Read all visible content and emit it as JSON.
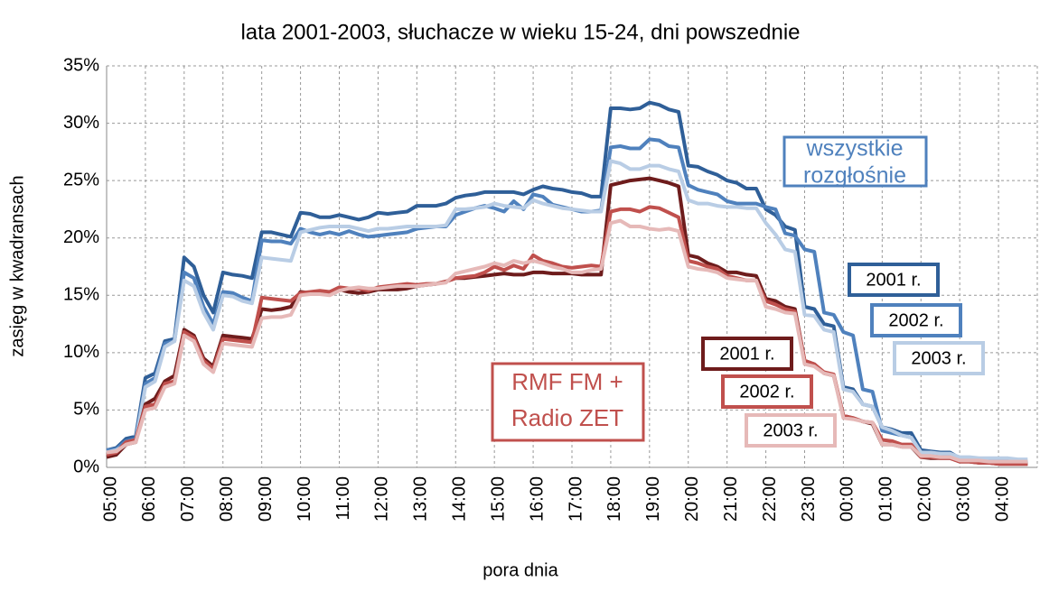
{
  "chart_data": {
    "type": "line",
    "title": "lata 2001-2003, słuchacze w wieku 15-24, dni powszednie",
    "x_label": "pora dnia",
    "y_label": "zasięg w kwadransach",
    "categories": [
      "05:00",
      null,
      null,
      null,
      "06:00",
      null,
      null,
      null,
      "07:00",
      null,
      null,
      null,
      "08:00",
      null,
      null,
      null,
      "09:00",
      null,
      null,
      null,
      "10:00",
      null,
      null,
      null,
      "11:00",
      null,
      null,
      null,
      "12:00",
      null,
      null,
      null,
      "13:00",
      null,
      null,
      null,
      "14:00",
      null,
      null,
      null,
      "15:00",
      null,
      null,
      null,
      "16:00",
      null,
      null,
      null,
      "17:00",
      null,
      null,
      null,
      "18:00",
      null,
      null,
      null,
      "19:00",
      null,
      null,
      null,
      "20:00",
      null,
      null,
      null,
      "21:00",
      null,
      null,
      null,
      "22:00",
      null,
      null,
      null,
      "23:00",
      null,
      null,
      null,
      "00:00",
      null,
      null,
      null,
      "01:00",
      null,
      null,
      null,
      "02:00",
      null,
      null,
      null,
      "03:00",
      null,
      null,
      null,
      "04:00",
      null,
      null,
      null
    ],
    "ylim": [
      0,
      35
    ],
    "yticks": [
      {
        "value": 0,
        "label": "0%"
      },
      {
        "value": 5,
        "label": "5%"
      },
      {
        "value": 10,
        "label": "10%"
      },
      {
        "value": 15,
        "label": "15%"
      },
      {
        "value": 20,
        "label": "20%"
      },
      {
        "value": 25,
        "label": "25%"
      },
      {
        "value": 30,
        "label": "30%"
      },
      {
        "value": 35,
        "label": "35%"
      }
    ],
    "grid": true,
    "annotations": [
      {
        "lines": [
          "wszystkie",
          "rozgłośnie"
        ],
        "color": "#4f81bd"
      },
      {
        "lines": [
          "RMF FM +",
          "Radio ZET"
        ],
        "color": "#c0504d"
      }
    ],
    "series": [
      {
        "name": "2001 r.",
        "group": 0,
        "color": "#2f5f98",
        "values": [
          1.5,
          1.7,
          2.5,
          2.7,
          7.8,
          8.2,
          11,
          11.2,
          18.3,
          17.5,
          15,
          13.5,
          17,
          16.8,
          16.7,
          16.5,
          20.5,
          20.5,
          20.3,
          20.1,
          22.2,
          22.1,
          21.8,
          21.8,
          22,
          21.8,
          21.6,
          21.8,
          22.2,
          22.1,
          22.2,
          22.3,
          22.8,
          22.8,
          22.8,
          23,
          23.5,
          23.7,
          23.8,
          24,
          24,
          24,
          24,
          23.8,
          24.2,
          24.5,
          24.3,
          24.2,
          24,
          23.9,
          23.6,
          23.6,
          31.3,
          31.3,
          31.2,
          31.3,
          31.8,
          31.6,
          31.2,
          31,
          26.3,
          26.2,
          25.8,
          25.5,
          25,
          24.8,
          24.3,
          24.3,
          22.5,
          22,
          21,
          20.7,
          14,
          13.8,
          12.5,
          12.3,
          7,
          6.8,
          5.5,
          5.3,
          3.5,
          3.3,
          3,
          3,
          1.5,
          1.4,
          1.3,
          1.3,
          0.8,
          0.8,
          0.7,
          0.7,
          0.6,
          0.6,
          0.5,
          0.5
        ]
      },
      {
        "name": "2002 r.",
        "group": 0,
        "color": "#4f81bd",
        "values": [
          1.5,
          1.6,
          2.3,
          2.5,
          7.3,
          7.8,
          10.8,
          11,
          17,
          16.5,
          14,
          12.5,
          15.3,
          15.2,
          14.8,
          14.5,
          19.8,
          19.7,
          19.7,
          19.5,
          20.8,
          20.5,
          20.3,
          20.5,
          20.3,
          20.6,
          20.3,
          20.1,
          20.2,
          20.3,
          20.4,
          20.5,
          20.8,
          20.9,
          21,
          21,
          22,
          22.3,
          22.6,
          22.8,
          22.6,
          22.3,
          23.2,
          22.5,
          23.8,
          23.6,
          22.9,
          22.7,
          22.5,
          22.3,
          22.3,
          22.4,
          27.9,
          28,
          27.8,
          27.8,
          28.6,
          28.5,
          28,
          27.9,
          24.6,
          24.2,
          24,
          23.8,
          23.2,
          23,
          23,
          23,
          22.7,
          22.5,
          20.4,
          20.2,
          19,
          18.8,
          13.5,
          13.3,
          11.8,
          11.5,
          6.8,
          6.6,
          3.2,
          3,
          2.8,
          2.6,
          1.3,
          1.2,
          1.2,
          1.1,
          0.6,
          0.6,
          0.6,
          0.5,
          0.5,
          0.5,
          0.4,
          0.4
        ]
      },
      {
        "name": "2003 r.",
        "group": 0,
        "color": "#b9cde5",
        "values": [
          1.3,
          1.5,
          2,
          2.3,
          7,
          7.5,
          10.5,
          11,
          16.3,
          15.8,
          13.5,
          12,
          15,
          14.9,
          14.5,
          14.3,
          18.3,
          18.2,
          18.1,
          18,
          20.5,
          20.7,
          20.9,
          21,
          21,
          21,
          20.8,
          20.6,
          20.8,
          20.8,
          20.9,
          21,
          21,
          21,
          21,
          21.1,
          22.5,
          22.5,
          22.6,
          22.7,
          23,
          22.8,
          22.7,
          22.6,
          23.3,
          23,
          22.8,
          22.6,
          22.5,
          22.4,
          22.3,
          22.3,
          26.7,
          26.5,
          26,
          26,
          26.3,
          26.3,
          26,
          25.8,
          23.3,
          23,
          23,
          22.8,
          22.7,
          22.7,
          22.6,
          22.6,
          21.3,
          20.3,
          19,
          18.8,
          13.3,
          13.2,
          12,
          11.8,
          6.8,
          6.6,
          5.5,
          5.3,
          3.5,
          3.2,
          2.8,
          2.6,
          1.3,
          1.3,
          1.2,
          1.2,
          0.9,
          0.9,
          0.8,
          0.8,
          0.8,
          0.8,
          0.7,
          0.7
        ]
      },
      {
        "name": "2001 r.",
        "group": 1,
        "color": "#6e1c1c",
        "values": [
          0.9,
          1.1,
          2,
          2.2,
          5.5,
          6,
          7.5,
          8,
          12,
          11.5,
          9.5,
          8.8,
          11.5,
          11.4,
          11.3,
          11.2,
          13.8,
          13.7,
          13.8,
          14,
          15.3,
          15.2,
          15.2,
          15.3,
          15.5,
          15.3,
          15.2,
          15.3,
          15.5,
          15.5,
          15.5,
          15.6,
          15.8,
          15.9,
          16,
          16.2,
          16.5,
          16.5,
          16.6,
          16.7,
          16.8,
          16.9,
          16.8,
          16.8,
          17,
          17,
          16.9,
          16.9,
          16.9,
          16.8,
          16.8,
          16.8,
          24.6,
          24.8,
          25,
          25.1,
          25.2,
          25,
          24.8,
          24.5,
          18.5,
          18.3,
          17.8,
          17.5,
          17,
          17,
          16.8,
          16.7,
          14.7,
          14.5,
          14,
          13.8,
          9.3,
          9,
          8.2,
          8,
          4.5,
          4.3,
          4,
          3.8,
          2,
          2,
          1.8,
          1.8,
          0.9,
          0.8,
          0.8,
          0.8,
          0.5,
          0.5,
          0.4,
          0.4,
          0.3,
          0.3,
          0.3,
          0.3
        ]
      },
      {
        "name": "2002 r.",
        "group": 1,
        "color": "#c0504d",
        "values": [
          1.1,
          1.3,
          2.2,
          2.4,
          5.3,
          5.5,
          7.3,
          7.5,
          11.8,
          11.3,
          9.3,
          8.6,
          11.2,
          11.1,
          11,
          10.9,
          14.8,
          14.7,
          14.6,
          14.5,
          15.2,
          15.3,
          15.4,
          15.3,
          15.7,
          15.6,
          15.6,
          15.4,
          15.7,
          15.8,
          15.9,
          16,
          15.9,
          16,
          16,
          16.2,
          16.5,
          16.6,
          16.7,
          17,
          17.5,
          17.2,
          17.6,
          17.3,
          18.5,
          18,
          17.8,
          17.5,
          17.4,
          17.5,
          17.6,
          17.5,
          22.3,
          22.5,
          22.5,
          22.3,
          22.7,
          22.6,
          22.2,
          21.8,
          18,
          17.8,
          17.5,
          17.3,
          16.7,
          16.5,
          16.3,
          16.3,
          14.5,
          14.2,
          13.8,
          13.6,
          9.3,
          9,
          8.3,
          8.1,
          4.5,
          4.3,
          4,
          3.9,
          2.4,
          2.3,
          2,
          2,
          0.9,
          0.9,
          0.8,
          0.8,
          0.5,
          0.5,
          0.4,
          0.4,
          0.3,
          0.3,
          0.3,
          0.3
        ]
      },
      {
        "name": "2003 r.",
        "group": 1,
        "color": "#e6b9b8",
        "values": [
          1.3,
          1.4,
          2,
          2.2,
          5,
          5.2,
          7,
          7.3,
          11.5,
          11,
          9,
          8.3,
          10.8,
          10.7,
          10.6,
          10.5,
          13,
          13.1,
          13.1,
          13.3,
          15,
          15.1,
          15.1,
          15,
          15.4,
          15.6,
          15.7,
          15.6,
          15.6,
          15.7,
          15.8,
          15.8,
          15.8,
          15.9,
          16,
          16.1,
          16.9,
          17.1,
          17.3,
          17.5,
          17.8,
          17.6,
          18,
          17.8,
          18,
          17.8,
          17.5,
          17.3,
          17,
          17,
          17.2,
          17.3,
          21.3,
          21.5,
          21,
          21,
          20.8,
          20.7,
          20.8,
          20.6,
          17.5,
          17.3,
          17.2,
          17,
          16.5,
          16.4,
          16.3,
          16.3,
          14,
          13.8,
          13.5,
          13.4,
          9,
          8.8,
          8.2,
          8,
          4.3,
          4.2,
          4,
          3.9,
          2,
          2,
          1.8,
          1.8,
          1,
          1,
          0.9,
          0.9,
          0.6,
          0.6,
          0.6,
          0.5,
          0.5,
          0.5,
          0.5,
          0.5
        ]
      }
    ]
  }
}
